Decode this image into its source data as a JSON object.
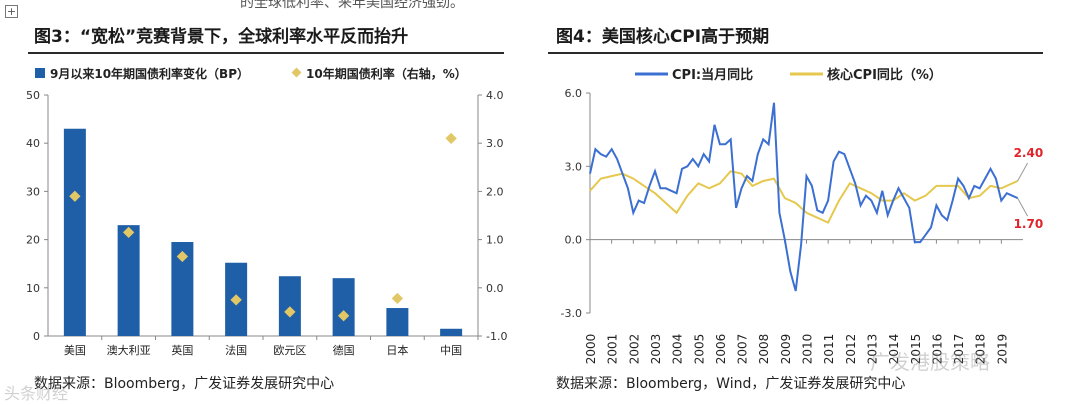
{
  "page": {
    "top_text": "的全球低利率、来年美国经济强劲。",
    "corner_mark": "+",
    "watermark_right": "广发港股策略",
    "watermark_left": "头条财经"
  },
  "left_panel": {
    "title": "图3：“宽松”竞赛背景下，全球利率水平反而抬升",
    "source": "数据来源：Bloomberg，广发证券发展研究中心"
  },
  "right_panel": {
    "title": "图4：美国核心CPI高于预期",
    "source": "数据来源：Bloomberg，Wind，广发证券发展研究中心"
  },
  "colors": {
    "bar": "#1f5fa8",
    "diamond": "#e2c766",
    "cpi": "#3b6fd1",
    "core": "#e6c84e",
    "annot": "#e0242b"
  },
  "chart_data": [
    {
      "type": "bar",
      "title": "图3：“宽松”竞赛背景下，全球利率水平反而抬升",
      "categories": [
        "美国",
        "澳大利亚",
        "英国",
        "法国",
        "欧元区",
        "德国",
        "日本",
        "中国"
      ],
      "series": [
        {
          "name": "9月以来10年期国债利率变化（BP）",
          "axis": "left",
          "type": "bar",
          "values": [
            43,
            23,
            19.5,
            15.2,
            12.4,
            12,
            5.8,
            1.5
          ]
        },
        {
          "name": "10年期国债利率（右轴，%）",
          "axis": "right",
          "type": "scatter",
          "values": [
            1.9,
            1.15,
            0.65,
            -0.25,
            -0.5,
            -0.58,
            -0.22,
            3.1
          ]
        }
      ],
      "ylim": [
        0,
        50
      ],
      "y_ticks": [
        "0",
        "10",
        "20",
        "30",
        "40",
        "50"
      ],
      "y2lim": [
        -1.0,
        4.0
      ],
      "y2_ticks": [
        "-1.0",
        "0.0",
        "1.0",
        "2.0",
        "3.0",
        "4.0"
      ],
      "legend_position": "top"
    },
    {
      "type": "line",
      "title": "图4：美国核心CPI高于预期",
      "x_ticks": [
        "2000",
        "2001",
        "2002",
        "2003",
        "2004",
        "2005",
        "2006",
        "2007",
        "2008",
        "2009",
        "2010",
        "2011",
        "2012",
        "2013",
        "2014",
        "2015",
        "2016",
        "2017",
        "2018",
        "2019"
      ],
      "xlim": [
        2000,
        2020
      ],
      "ylim": [
        -3.0,
        6.0
      ],
      "y_ticks": [
        "-3.0",
        "0.0",
        "3.0",
        "6.0"
      ],
      "series": [
        {
          "name": "CPI:当月同比",
          "x": [
            2000,
            2000.25,
            2000.5,
            2000.75,
            2001,
            2001.25,
            2001.5,
            2001.75,
            2002,
            2002.25,
            2002.5,
            2002.75,
            2003,
            2003.25,
            2003.5,
            2003.75,
            2004,
            2004.25,
            2004.5,
            2004.75,
            2005,
            2005.25,
            2005.5,
            2005.75,
            2006,
            2006.25,
            2006.5,
            2006.75,
            2007,
            2007.25,
            2007.5,
            2007.75,
            2008,
            2008.25,
            2008.5,
            2008.75,
            2009,
            2009.25,
            2009.5,
            2009.75,
            2010,
            2010.25,
            2010.5,
            2010.75,
            2011,
            2011.25,
            2011.5,
            2011.75,
            2012,
            2012.25,
            2012.5,
            2012.75,
            2013,
            2013.25,
            2013.5,
            2013.75,
            2014,
            2014.25,
            2014.5,
            2014.75,
            2015,
            2015.25,
            2015.5,
            2015.75,
            2016,
            2016.25,
            2016.5,
            2016.75,
            2017,
            2017.25,
            2017.5,
            2017.75,
            2018,
            2018.25,
            2018.5,
            2018.75,
            2019,
            2019.25,
            2019.5,
            2019.75
          ],
          "y": [
            2.7,
            3.7,
            3.5,
            3.4,
            3.7,
            3.3,
            2.7,
            2.1,
            1.1,
            1.6,
            1.5,
            2.2,
            2.8,
            2.1,
            2.1,
            2.0,
            1.9,
            2.9,
            3.0,
            3.3,
            3.0,
            3.5,
            3.2,
            4.7,
            3.9,
            3.9,
            4.1,
            1.3,
            2.1,
            2.6,
            2.4,
            3.5,
            4.1,
            3.9,
            5.6,
            1.1,
            0.0,
            -1.3,
            -2.1,
            -0.2,
            2.6,
            2.2,
            1.2,
            1.1,
            1.6,
            3.2,
            3.6,
            3.5,
            2.9,
            2.3,
            1.4,
            1.8,
            1.6,
            1.1,
            2.0,
            1.0,
            1.6,
            2.1,
            1.7,
            1.3,
            -0.1,
            -0.1,
            0.2,
            0.5,
            1.4,
            1.0,
            0.8,
            1.6,
            2.5,
            2.2,
            1.7,
            2.2,
            2.1,
            2.5,
            2.9,
            2.5,
            1.6,
            1.9,
            1.8,
            1.7
          ]
        },
        {
          "name": "核心CPI同比（%）",
          "x": [
            2000,
            2000.5,
            2001,
            2001.5,
            2002,
            2002.5,
            2003,
            2003.5,
            2004,
            2004.5,
            2005,
            2005.5,
            2006,
            2006.5,
            2007,
            2007.5,
            2008,
            2008.5,
            2009,
            2009.5,
            2010,
            2010.5,
            2011,
            2011.5,
            2012,
            2012.5,
            2013,
            2013.5,
            2014,
            2014.5,
            2015,
            2015.5,
            2016,
            2016.5,
            2017,
            2017.5,
            2018,
            2018.5,
            2019,
            2019.5,
            2019.75
          ],
          "y": [
            2.0,
            2.5,
            2.6,
            2.7,
            2.5,
            2.2,
            1.9,
            1.5,
            1.1,
            1.8,
            2.3,
            2.1,
            2.3,
            2.8,
            2.7,
            2.2,
            2.4,
            2.5,
            1.7,
            1.5,
            1.1,
            0.9,
            0.7,
            1.6,
            2.3,
            2.1,
            1.9,
            1.6,
            1.6,
            1.9,
            1.6,
            1.8,
            2.2,
            2.2,
            2.2,
            1.7,
            1.8,
            2.2,
            2.1,
            2.3,
            2.4
          ]
        }
      ],
      "annotations": [
        {
          "label": "2.40",
          "x": 2019.75,
          "y": 2.4
        },
        {
          "label": "1.70",
          "x": 2019.75,
          "y": 1.7
        }
      ],
      "legend_position": "top"
    }
  ]
}
